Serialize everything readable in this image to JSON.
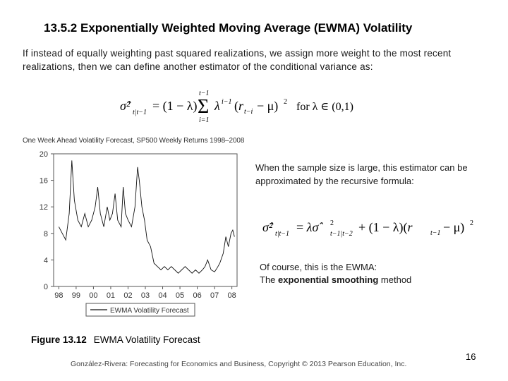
{
  "slide": {
    "title": "13.5.2  Exponentially Weighted Moving Average (EWMA) Volatility",
    "intro": "If instead of equally weighting past squared realizations, we assign more weight to the most recent realizations, then we can define another estimator of the conditional variance as:",
    "side_text_1": "When the sample size is large, this estimator can be approximated by the recursive formula:",
    "side_text_2_line1": "Of course, this is the EWMA:",
    "side_text_2_prefix": "The ",
    "side_text_2_bold": "exponential smoothing",
    "side_text_2_suffix": " method",
    "figure_number": "Figure 13.12",
    "figure_caption": "EWMA Volatility Forecast",
    "footer": "González-Rivera: Forecasting for Economics and Business, Copyright © 2013 Pearson Education, Inc.",
    "page_number": "16"
  },
  "equations": {
    "eq1": {
      "lhs": "σ̂²",
      "lhs_sub": "t|t−1",
      "sum_upper": "t−1",
      "sum_lower": "i=1",
      "condition": "for λ ∈ (0,1)"
    },
    "eq2": {
      "lhs": "σ̂²",
      "lhs_sub": "t|t−1"
    }
  },
  "chart_data": {
    "type": "line",
    "title": "One Week Ahead Volatility Forecast, SP500 Weekly Returns 1998–2008",
    "xlabel": "",
    "ylabel": "",
    "ylim": [
      0,
      20
    ],
    "yticks": [
      "0",
      "4",
      "8",
      "12",
      "16",
      "20"
    ],
    "xticks": [
      "98",
      "99",
      "00",
      "01",
      "02",
      "03",
      "04",
      "05",
      "06",
      "07",
      "08"
    ],
    "legend": "EWMA Volatility Forecast",
    "legend_position": "bottom",
    "series": [
      {
        "name": "EWMA Volatility Forecast",
        "x": [
          1998.0,
          1998.4,
          1998.6,
          1998.75,
          1998.9,
          1999.1,
          1999.3,
          1999.5,
          1999.7,
          1999.9,
          2000.1,
          2000.25,
          2000.4,
          2000.6,
          2000.8,
          2000.95,
          2001.1,
          2001.25,
          2001.4,
          2001.6,
          2001.72,
          2001.85,
          2002.0,
          2002.2,
          2002.4,
          2002.55,
          2002.65,
          2002.8,
          2002.95,
          2003.1,
          2003.3,
          2003.5,
          2003.7,
          2003.9,
          2004.1,
          2004.3,
          2004.5,
          2004.7,
          2004.9,
          2005.1,
          2005.3,
          2005.5,
          2005.7,
          2005.9,
          2006.1,
          2006.3,
          2006.45,
          2006.6,
          2006.8,
          2007.0,
          2007.15,
          2007.3,
          2007.5,
          2007.65,
          2007.8,
          2007.95,
          2008.05,
          2008.15
        ],
        "values": [
          9,
          7,
          11,
          19,
          13,
          10,
          9,
          11,
          9,
          10,
          12,
          15,
          11,
          9,
          12,
          10,
          11,
          14,
          10,
          9,
          15,
          11,
          10,
          9,
          12,
          18,
          16,
          12,
          10,
          7,
          6,
          3.5,
          3,
          2.5,
          3,
          2.5,
          3,
          2.5,
          2,
          2.5,
          3,
          2.5,
          2,
          2.5,
          2,
          2.5,
          3,
          4,
          2.5,
          2.2,
          2.8,
          3.5,
          5,
          7.5,
          6,
          8,
          8.5,
          7.5
        ]
      }
    ]
  }
}
